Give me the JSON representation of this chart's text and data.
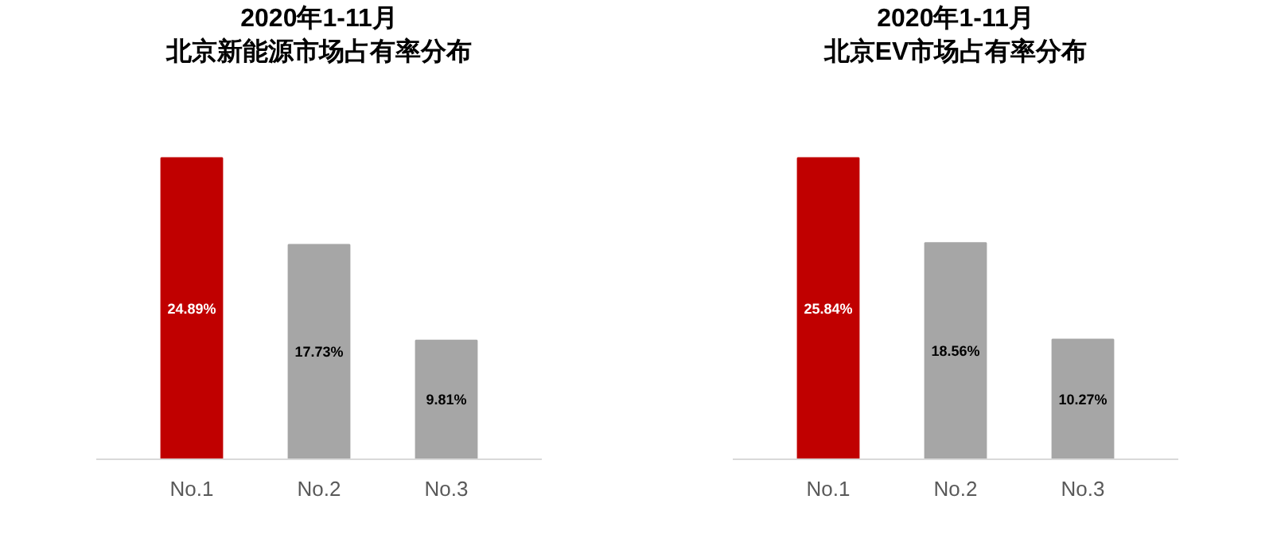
{
  "chart_data": [
    {
      "type": "bar",
      "title": "2020年1-11月",
      "subtitle": "北京新能源市场占有率分布",
      "categories": [
        "No.1",
        "No.2",
        "No.3"
      ],
      "values": [
        24.89,
        17.73,
        9.81
      ],
      "colors": [
        "#c00000",
        "#a6a6a6",
        "#a6a6a6"
      ],
      "value_labels": [
        "24.89%",
        "17.73%",
        "9.81%"
      ]
    },
    {
      "type": "bar",
      "title": "2020年1-11月",
      "subtitle": "北京EV市场占有率分布",
      "categories": [
        "No.1",
        "No.2",
        "No.3"
      ],
      "values": [
        25.84,
        18.56,
        10.27
      ],
      "colors": [
        "#c00000",
        "#a6a6a6",
        "#a6a6a6"
      ],
      "value_labels": [
        "25.84%",
        "18.56%",
        "10.27%"
      ]
    }
  ]
}
